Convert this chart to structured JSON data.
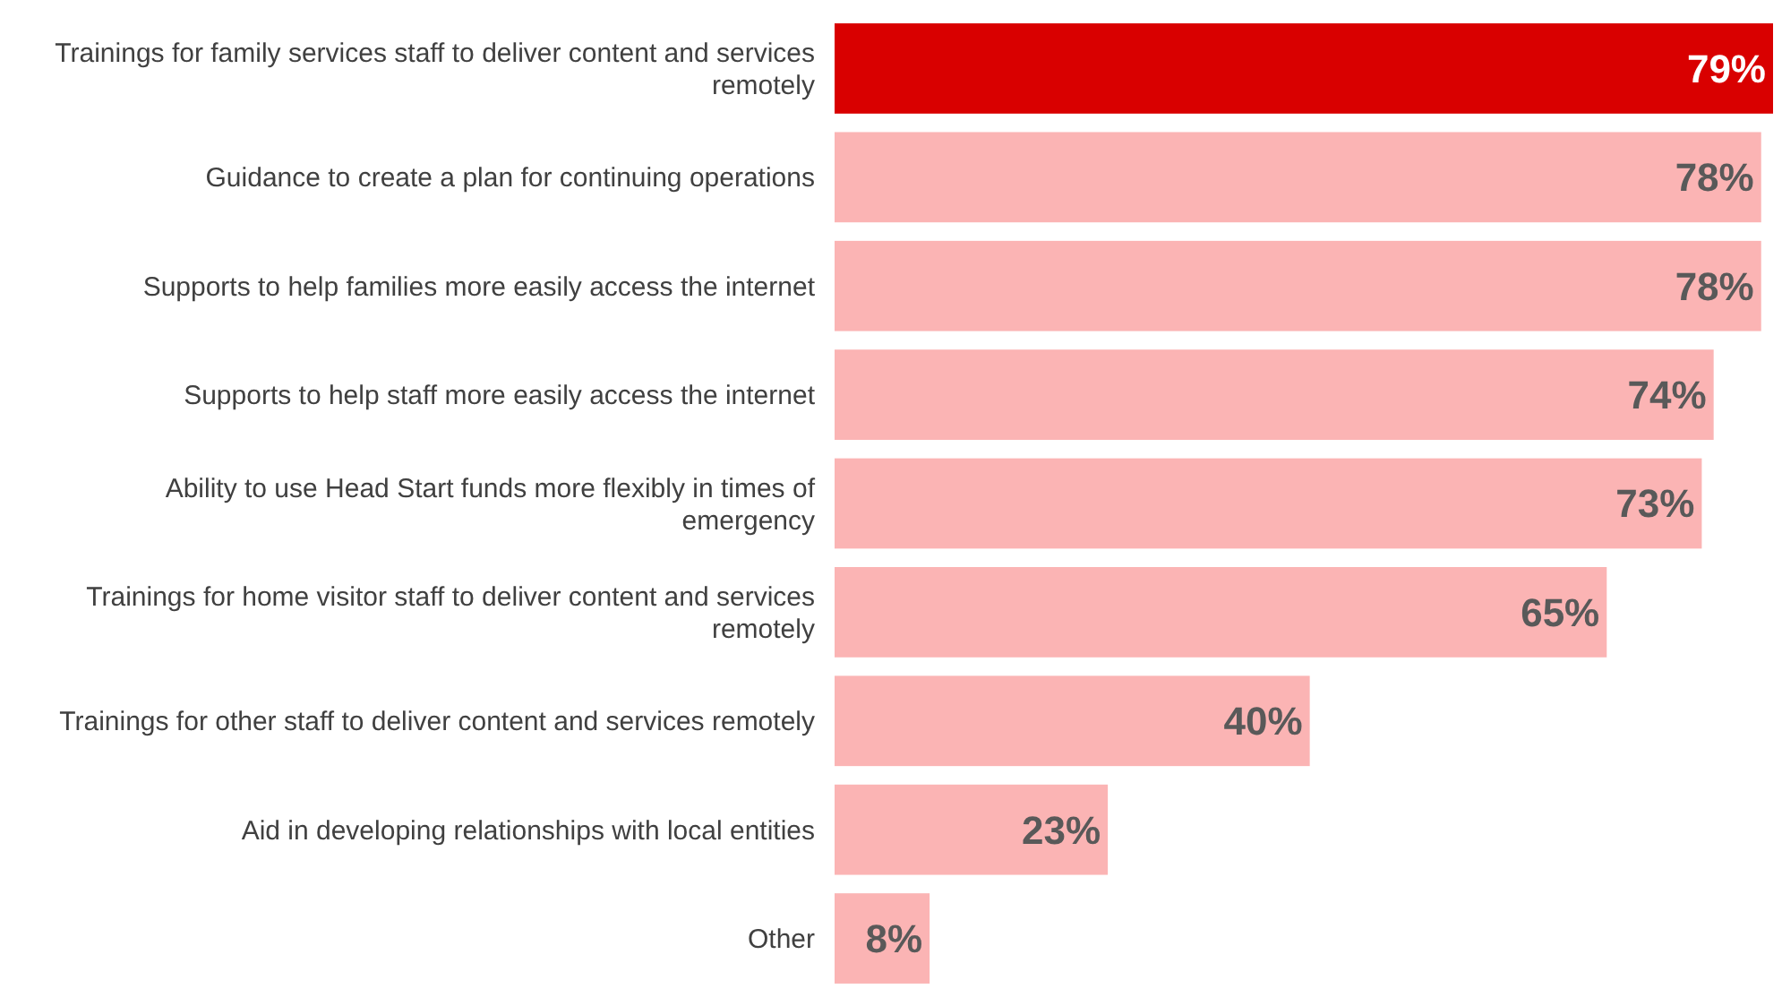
{
  "chart_data": {
    "type": "bar",
    "orientation": "horizontal",
    "categories": [
      "Trainings for family services staff to deliver content and services remotely",
      "Guidance to create a plan for continuing operations",
      "Supports to help families more easily access the internet",
      "Supports to help staff more easily access the internet",
      "Ability to use Head Start funds more flexibly in times of emergency",
      "Trainings for home visitor staff to deliver content and services remotely",
      "Trainings for other staff to deliver content and services remotely",
      "Aid in developing relationships with local entities",
      "Other"
    ],
    "values": [
      79,
      78,
      78,
      74,
      73,
      65,
      40,
      23,
      8
    ],
    "value_labels": [
      "79%",
      "78%",
      "78%",
      "74%",
      "73%",
      "65%",
      "40%",
      "23%",
      "8%"
    ],
    "colors": [
      "#d90000",
      "#fbb4b4",
      "#fbb4b4",
      "#fbb4b4",
      "#fbb4b4",
      "#fbb4b4",
      "#fbb4b4",
      "#fbb4b4",
      "#fbb4b4"
    ]
  }
}
